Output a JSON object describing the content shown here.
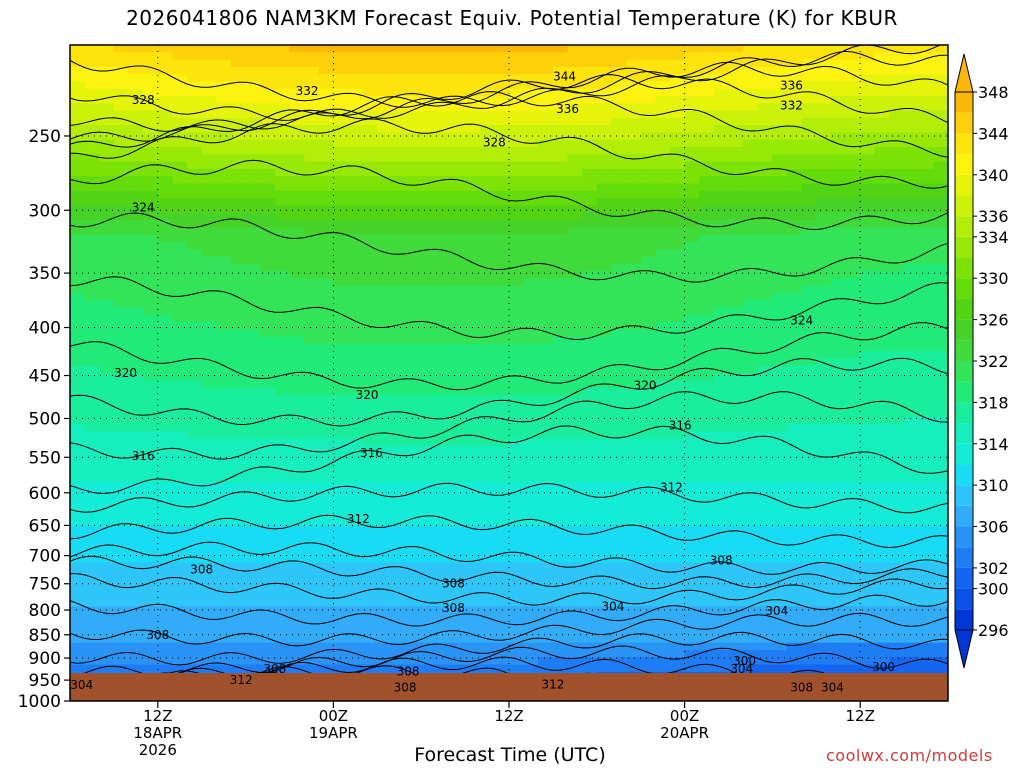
{
  "title": "2026041806 NAM3KM Forecast Equiv. Potential Temperature (K) for KBUR",
  "credit": "coolwx.com/models",
  "chart_data": {
    "type": "heatmap",
    "title": "2026041806 NAM3KM Forecast Equiv. Potential Temperature (K) for KBUR",
    "xlabel": "Forecast Time (UTC)",
    "ylabel": "",
    "y_axis_scale": "log-pressure",
    "y_ticks": [
      250,
      300,
      350,
      400,
      450,
      500,
      550,
      600,
      650,
      700,
      750,
      800,
      850,
      900,
      950,
      1000
    ],
    "ylim": [
      200,
      1000
    ],
    "x_ticks": [
      {
        "hours": 6,
        "l1": "12Z",
        "l2": "18APR",
        "l3": "2026"
      },
      {
        "hours": 18,
        "l1": "00Z",
        "l2": "19APR",
        "l3": ""
      },
      {
        "hours": 30,
        "l1": "12Z",
        "l2": "",
        "l3": ""
      },
      {
        "hours": 42,
        "l1": "00Z",
        "l2": "20APR",
        "l3": ""
      },
      {
        "hours": 54,
        "l1": "12Z",
        "l2": "",
        "l3": ""
      }
    ],
    "xlim_hours": [
      0,
      60
    ],
    "grid": true,
    "colorbar": {
      "levels": [
        296,
        298,
        300,
        302,
        304,
        306,
        308,
        310,
        312,
        314,
        316,
        318,
        320,
        322,
        324,
        326,
        328,
        330,
        332,
        334,
        336,
        338,
        340,
        342,
        344,
        346,
        348
      ],
      "labels": [
        296,
        300,
        302,
        306,
        310,
        314,
        318,
        322,
        326,
        330,
        334,
        336,
        340,
        344,
        348
      ],
      "colors": [
        "#0036d6",
        "#0a52e6",
        "#1466f0",
        "#1e7cf4",
        "#2a94f6",
        "#32acf8",
        "#2ec6f8",
        "#18dcf4",
        "#14ecd8",
        "#16eebe",
        "#1aee9c",
        "#22ea78",
        "#34e458",
        "#40da3a",
        "#46d228",
        "#52d414",
        "#64dc0c",
        "#7ce208",
        "#98e808",
        "#b2ee0a",
        "#ccf20a",
        "#e6f40c",
        "#fcf410",
        "#fce40c",
        "#fcd00a",
        "#fcb808"
      ]
    },
    "contour_labels": [
      {
        "text": "344",
        "hours": 33.8,
        "p": 216
      },
      {
        "text": "336",
        "hours": 49.3,
        "p": 221
      },
      {
        "text": "332",
        "hours": 16.2,
        "p": 224
      },
      {
        "text": "328",
        "hours": 5.0,
        "p": 229
      },
      {
        "text": "332",
        "hours": 49.3,
        "p": 232
      },
      {
        "text": "336",
        "hours": 34.0,
        "p": 234
      },
      {
        "text": "328",
        "hours": 29.0,
        "p": 254
      },
      {
        "text": "324",
        "hours": 5.0,
        "p": 298
      },
      {
        "text": "324",
        "hours": 50.0,
        "p": 393
      },
      {
        "text": "320",
        "hours": 3.8,
        "p": 447
      },
      {
        "text": "320",
        "hours": 39.3,
        "p": 461
      },
      {
        "text": "320",
        "hours": 20.3,
        "p": 472
      },
      {
        "text": "316",
        "hours": 41.7,
        "p": 509
      },
      {
        "text": "316",
        "hours": 20.6,
        "p": 544
      },
      {
        "text": "316",
        "hours": 5.0,
        "p": 548
      },
      {
        "text": "312",
        "hours": 41.1,
        "p": 592
      },
      {
        "text": "312",
        "hours": 19.7,
        "p": 640
      },
      {
        "text": "308",
        "hours": 44.5,
        "p": 708
      },
      {
        "text": "308",
        "hours": 9.0,
        "p": 724
      },
      {
        "text": "308",
        "hours": 26.2,
        "p": 750
      },
      {
        "text": "304",
        "hours": 37.1,
        "p": 793
      },
      {
        "text": "308",
        "hours": 26.2,
        "p": 796
      },
      {
        "text": "304",
        "hours": 48.3,
        "p": 802
      },
      {
        "text": "308",
        "hours": 6.0,
        "p": 850
      },
      {
        "text": "300",
        "hours": 46.1,
        "p": 907
      },
      {
        "text": "300",
        "hours": 55.6,
        "p": 920
      },
      {
        "text": "308",
        "hours": 14.0,
        "p": 925
      },
      {
        "text": "304",
        "hours": 45.9,
        "p": 925
      },
      {
        "text": "308",
        "hours": 23.1,
        "p": 930
      },
      {
        "text": "312",
        "hours": 11.7,
        "p": 950
      },
      {
        "text": "312",
        "hours": 33.0,
        "p": 960
      },
      {
        "text": "304",
        "hours": 0.8,
        "p": 962
      },
      {
        "text": "308",
        "hours": 22.9,
        "p": 968
      },
      {
        "text": "308",
        "hours": 50.0,
        "p": 968
      },
      {
        "text": "304",
        "hours": 52.1,
        "p": 968
      }
    ]
  }
}
